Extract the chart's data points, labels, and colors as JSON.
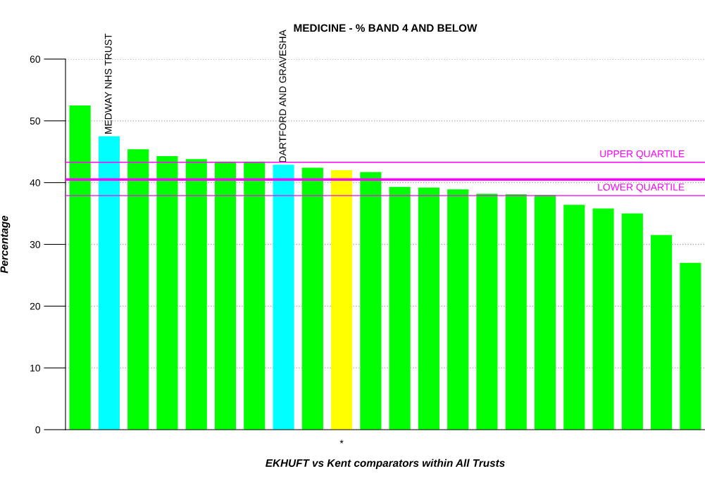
{
  "chart_data": {
    "type": "bar",
    "title": "MEDICINE - % BAND 4 AND BELOW",
    "xlabel": "EKHUFT vs Kent comparators within All Trusts",
    "ylabel": "Percentage",
    "categories": [
      null,
      "MEDWAY NHS TRUST",
      null,
      null,
      null,
      null,
      null,
      "DARTFORD AND GRAVESHA",
      null,
      "*",
      null,
      null,
      null,
      null,
      null,
      null,
      null,
      null,
      null,
      null,
      null,
      null
    ],
    "values": [
      52.5,
      47.5,
      45.4,
      44.3,
      43.8,
      43.4,
      43.4,
      42.9,
      42.4,
      42.0,
      41.7,
      39.3,
      39.2,
      38.9,
      38.2,
      38.1,
      38.0,
      36.4,
      35.8,
      35.0,
      31.5,
      27.0
    ],
    "colors": [
      "#00ff00",
      "#00ffff",
      "#00ff00",
      "#00ff00",
      "#00ff00",
      "#00ff00",
      "#00ff00",
      "#00ffff",
      "#00ff00",
      "#ffff00",
      "#00ff00",
      "#00ff00",
      "#00ff00",
      "#00ff00",
      "#00ff00",
      "#00ff00",
      "#00ff00",
      "#00ff00",
      "#00ff00",
      "#00ff00",
      "#00ff00",
      "#00ff00"
    ],
    "ylim": [
      0,
      60
    ],
    "yticks": [
      0,
      10,
      20,
      30,
      40,
      50,
      60
    ],
    "grid": "y",
    "ref_lines": [
      {
        "axis": "y",
        "value": 43.3,
        "label": "UPPER QUARTILE",
        "color": "#ff00ff"
      },
      {
        "axis": "y",
        "value": 40.5,
        "color": "#ff00ff"
      },
      {
        "axis": "y",
        "value": 37.9,
        "label": "LOWER QUARTILE",
        "color": "#ff00ff"
      }
    ]
  }
}
